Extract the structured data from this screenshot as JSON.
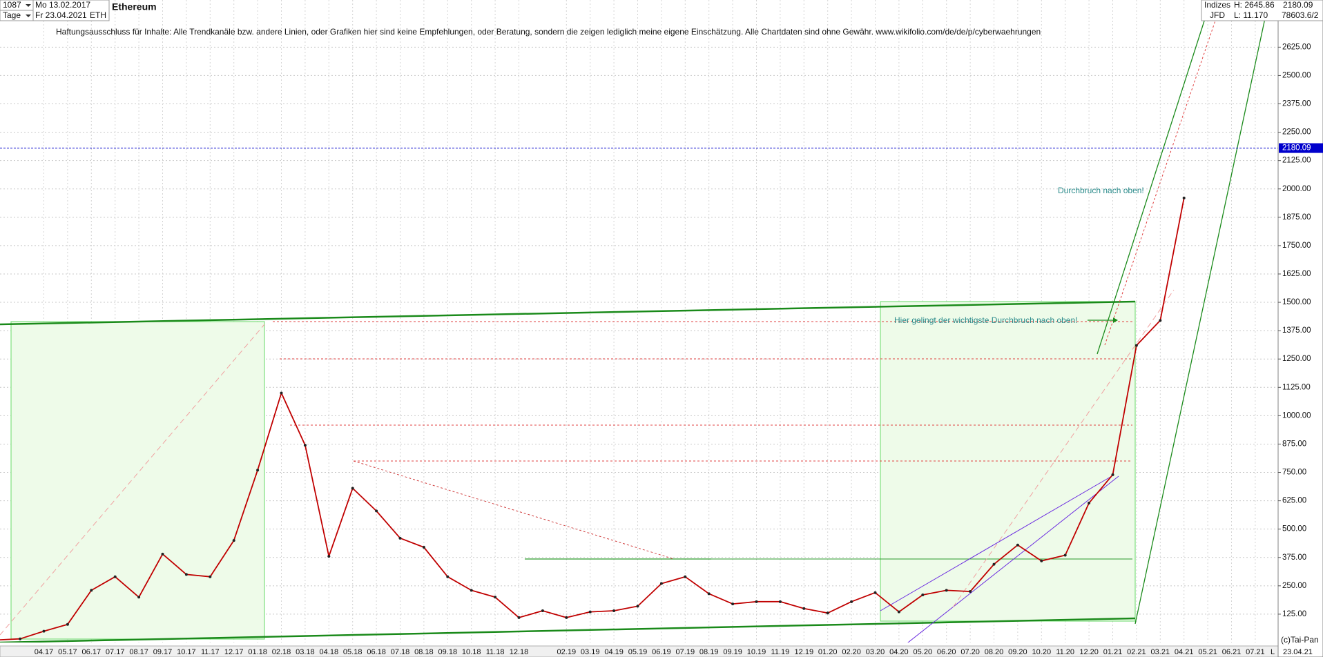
{
  "chart_data": {
    "type": "line",
    "title": "Ethereum",
    "header": {
      "count": "1087",
      "period": "Tage",
      "start": "Mo 13.02.2017",
      "end": "Fr 23.04.2021",
      "symbol": "ETH",
      "exchange": "Indizes",
      "source": "JFD",
      "high": "H: 2645.86",
      "low": "L: 11.170",
      "volume": "78603.6/2"
    },
    "disclaimer": "Haftungsausschluss für Inhalte: Alle Trendkanäle bzw. andere Linien, oder Grafiken hier sind keine Empfehlungen, oder Beratung, sondern die zeigen lediglich meine eigene Einschätzung. Alle Chartdaten sind ohne Gewähr.  www.wikifolio.com/de/de/p/cyberwaehrungen",
    "annotations": [
      "Durchbruch nach oben!",
      "Hier gelingt der wichtigste Durchbruch nach oben!"
    ],
    "copyright": "(c)Tai-Pan",
    "footer_mark": "L",
    "footer_date": "23.04.21",
    "categories": [
      null,
      null,
      "04.17",
      "05.17",
      "06.17",
      "07.17",
      "08.17",
      "09.17",
      "10.17",
      "11.17",
      "12.17",
      "01.18",
      "02.18",
      "03.18",
      "04.18",
      "05.18",
      "06.18",
      "07.18",
      "08.18",
      "09.18",
      "10.18",
      "11.18",
      "12.18",
      null,
      "02.19",
      "03.19",
      "04.19",
      "05.19",
      "06.19",
      "07.19",
      "08.19",
      "09.19",
      "10.19",
      "11.19",
      "12.19",
      "01.20",
      "02.20",
      "03.20",
      "04.20",
      "05.20",
      "06.20",
      "07.20",
      "08.20",
      "09.20",
      "10.20",
      "11.20",
      "12.20",
      "01.21",
      "02.21",
      "03.21",
      "04.21",
      "05.21",
      "06.21",
      "07.21"
    ],
    "values": [
      11,
      16,
      50,
      80,
      230,
      290,
      200,
      390,
      300,
      290,
      450,
      760,
      1100,
      870,
      380,
      680,
      580,
      460,
      420,
      290,
      230,
      200,
      110,
      140,
      110,
      135,
      140,
      160,
      260,
      290,
      215,
      170,
      180,
      180,
      150,
      130,
      180,
      220,
      135,
      210,
      230,
      225,
      345,
      430,
      360,
      385,
      615,
      740,
      1310,
      1420,
      1960,
      null,
      null,
      null
    ],
    "color": "#c00000",
    "last_price": 2180.09,
    "last_price_color": "#0000cc",
    "ylim": [
      0,
      2833
    ],
    "yticks": [
      {
        "value": 125,
        "label": "125.00"
      },
      {
        "value": 250,
        "label": "250.00"
      },
      {
        "value": 375,
        "label": "375.00"
      },
      {
        "value": 500,
        "label": "500.00"
      },
      {
        "value": 625,
        "label": "625.00"
      },
      {
        "value": 750,
        "label": "750.00"
      },
      {
        "value": 875,
        "label": "875.00"
      },
      {
        "value": 1000,
        "label": "1000.00"
      },
      {
        "value": 1125,
        "label": "1125.00"
      },
      {
        "value": 1250,
        "label": "1250.00"
      },
      {
        "value": 1375,
        "label": "1375.00"
      },
      {
        "value": 1500,
        "label": "1500.00"
      },
      {
        "value": 1625,
        "label": "1625.00"
      },
      {
        "value": 1750,
        "label": "1750.00"
      },
      {
        "value": 1875,
        "label": "1875.00"
      },
      {
        "value": 2000,
        "label": "2000.00"
      },
      {
        "value": 2125,
        "label": "2125.00"
      },
      {
        "value": 2250,
        "label": "2250.00"
      },
      {
        "value": 2375,
        "label": "2375.00"
      },
      {
        "value": 2500,
        "label": "2500.00"
      },
      {
        "value": 2625,
        "label": "2625.00"
      }
    ],
    "grid": true
  }
}
